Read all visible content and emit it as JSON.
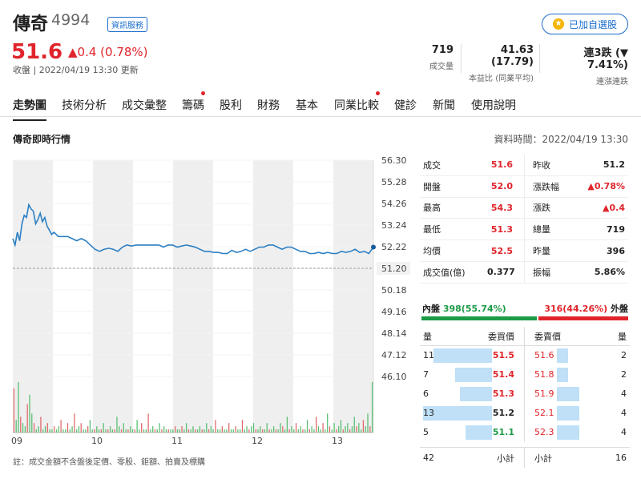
{
  "stock": {
    "name": "傳奇",
    "code": "4994",
    "info_tag": "資訊服務",
    "watch_label": "已加自選股",
    "price": "51.6",
    "change": "▲0.4 (0.78%)",
    "update": "收盤 | 2022/04/19 13:30 更新"
  },
  "header_stats": [
    {
      "value": "719",
      "label": "成交量"
    },
    {
      "value": "41.63 (17.79)",
      "label": "本益比 (同業平均)"
    },
    {
      "value": "連3跌 (▼ 7.41%)",
      "label": "連漲連跌"
    }
  ],
  "tabs": [
    "走勢圖",
    "技術分析",
    "成交彙整",
    "籌碼",
    "股利",
    "財務",
    "基本",
    "同業比較",
    "健診",
    "新聞",
    "使用說明"
  ],
  "section": {
    "title": "傳奇即時行情",
    "data_time": "資料時間：2022/04/19 13:30"
  },
  "chart_data": {
    "type": "line",
    "x_ticks": [
      "09",
      "10",
      "11",
      "12",
      "13"
    ],
    "y_ticks": [
      "56.30",
      "55.28",
      "54.26",
      "53.24",
      "52.22",
      "51.20",
      "50.18",
      "49.16",
      "48.14",
      "47.12",
      "46.10"
    ],
    "ylim": [
      46.1,
      56.3
    ],
    "reference_label": "51.20",
    "reference": 51.2,
    "price_series": [
      [
        0,
        52.6
      ],
      [
        3,
        52.3
      ],
      [
        6,
        52.9
      ],
      [
        9,
        52.5
      ],
      [
        12,
        53.3
      ],
      [
        15,
        53.7
      ],
      [
        18,
        53.6
      ],
      [
        21,
        54.2
      ],
      [
        24,
        54.0
      ],
      [
        27,
        53.9
      ],
      [
        30,
        53.3
      ],
      [
        33,
        53.5
      ],
      [
        36,
        53.8
      ],
      [
        39,
        53.4
      ],
      [
        42,
        53.6
      ],
      [
        45,
        53.2
      ],
      [
        48,
        53.0
      ],
      [
        51,
        52.8
      ],
      [
        54,
        52.9
      ],
      [
        57,
        52.8
      ],
      [
        60,
        52.7
      ],
      [
        66,
        52.7
      ],
      [
        72,
        52.7
      ],
      [
        78,
        52.6
      ],
      [
        84,
        52.5
      ],
      [
        90,
        52.6
      ],
      [
        96,
        52.5
      ],
      [
        102,
        52.3
      ],
      [
        108,
        52.1
      ],
      [
        114,
        52.0
      ],
      [
        120,
        52.1
      ],
      [
        126,
        52.15
      ],
      [
        132,
        52.1
      ],
      [
        138,
        52.0
      ],
      [
        144,
        52.2
      ],
      [
        150,
        52.3
      ],
      [
        156,
        52.25
      ],
      [
        162,
        52.3
      ],
      [
        168,
        52.3
      ],
      [
        180,
        52.3
      ],
      [
        192,
        52.3
      ],
      [
        198,
        52.2
      ],
      [
        204,
        52.3
      ],
      [
        210,
        52.3
      ],
      [
        216,
        52.2
      ],
      [
        222,
        52.25
      ],
      [
        228,
        52.3
      ],
      [
        234,
        52.25
      ],
      [
        240,
        52.2
      ],
      [
        246,
        52.1
      ],
      [
        252,
        52.0
      ],
      [
        258,
        52.0
      ],
      [
        264,
        51.95
      ],
      [
        270,
        51.95
      ],
      [
        276,
        51.9
      ],
      [
        282,
        51.9
      ],
      [
        288,
        52.05
      ],
      [
        294,
        51.95
      ],
      [
        300,
        52.0
      ],
      [
        306,
        52.1
      ],
      [
        312,
        52.0
      ],
      [
        318,
        52.1
      ],
      [
        324,
        52.2
      ],
      [
        330,
        52.2
      ],
      [
        336,
        52.3
      ],
      [
        342,
        52.3
      ],
      [
        348,
        52.2
      ],
      [
        354,
        52.1
      ],
      [
        360,
        52.2
      ],
      [
        366,
        52.2
      ],
      [
        372,
        52.1
      ],
      [
        378,
        52.0
      ],
      [
        384,
        52.0
      ],
      [
        390,
        51.9
      ],
      [
        396,
        51.9
      ],
      [
        402,
        51.95
      ],
      [
        408,
        51.9
      ],
      [
        414,
        51.95
      ],
      [
        420,
        51.9
      ],
      [
        426,
        51.9
      ],
      [
        432,
        52.0
      ],
      [
        438,
        51.95
      ],
      [
        444,
        52.0
      ],
      [
        450,
        52.1
      ],
      [
        456,
        51.95
      ],
      [
        462,
        52.0
      ],
      [
        468,
        51.9
      ],
      [
        474,
        52.2
      ]
    ],
    "volume": [
      14,
      4,
      16,
      5,
      3,
      2,
      9,
      12,
      6,
      3,
      1,
      2,
      5,
      1,
      2,
      3,
      1,
      1,
      2,
      1,
      2,
      4,
      1,
      1,
      3,
      1,
      2,
      6,
      1,
      2,
      3,
      1,
      1,
      2,
      4,
      1,
      1,
      2,
      1,
      1,
      3,
      1,
      1,
      2,
      1,
      1,
      5,
      2,
      1,
      3,
      1,
      1,
      2,
      1,
      1,
      4,
      1,
      3,
      1,
      1,
      6,
      1,
      2,
      1,
      1,
      3,
      1,
      2,
      1,
      1,
      1,
      1,
      2,
      1,
      1,
      2,
      1,
      3,
      1,
      1,
      2,
      1,
      1,
      2,
      1,
      1,
      3,
      1,
      2,
      1,
      4,
      1,
      1,
      2,
      1,
      1,
      3,
      1,
      1,
      2,
      1,
      1,
      4,
      1,
      2,
      1,
      2,
      3,
      1,
      1,
      2,
      1,
      1,
      3,
      1,
      1,
      2,
      1,
      1,
      3,
      2,
      1,
      5,
      1,
      2,
      1,
      3,
      1,
      2,
      1,
      1,
      4,
      1,
      2,
      1,
      5,
      2,
      1,
      3,
      1,
      6,
      2,
      1,
      3,
      1,
      2,
      4,
      1,
      2,
      3,
      1,
      2,
      5,
      2,
      3,
      1,
      4,
      2,
      6,
      2,
      16
    ]
  },
  "quotes": {
    "left": [
      {
        "label": "成交",
        "value": "51.6",
        "color": "red"
      },
      {
        "label": "開盤",
        "value": "52.0",
        "color": "red"
      },
      {
        "label": "最高",
        "value": "54.3",
        "color": "red"
      },
      {
        "label": "最低",
        "value": "51.3",
        "color": "red"
      },
      {
        "label": "均價",
        "value": "52.5",
        "color": "red"
      },
      {
        "label": "成交值(億)",
        "value": "0.377",
        "color": "black"
      }
    ],
    "right": [
      {
        "label": "昨收",
        "value": "51.2",
        "color": "black"
      },
      {
        "label": "漲跌幅",
        "value": "▲0.78%",
        "color": "red"
      },
      {
        "label": "漲跌",
        "value": "▲0.4",
        "color": "red"
      },
      {
        "label": "總量",
        "value": "719",
        "color": "black"
      },
      {
        "label": "昨量",
        "value": "396",
        "color": "black"
      },
      {
        "label": "振幅",
        "value": "5.86%",
        "color": "black"
      }
    ]
  },
  "pressure": {
    "inner_label": "內盤",
    "inner_value": "398(55.74%)",
    "inner_ratio": 0.5574,
    "outer_value": "316(44.26%)",
    "outer_label": "外盤"
  },
  "orderbook": {
    "headers": [
      "量",
      "委買價",
      "委賣價",
      "量"
    ],
    "bids": [
      {
        "qty": "11",
        "price": "51.5",
        "color": "red",
        "ratio": 0.85
      },
      {
        "qty": "7",
        "price": "51.4",
        "color": "red",
        "ratio": 0.54
      },
      {
        "qty": "6",
        "price": "51.3",
        "color": "red",
        "ratio": 0.46
      },
      {
        "qty": "13",
        "price": "51.2",
        "color": "black",
        "ratio": 1.0
      },
      {
        "qty": "5",
        "price": "51.1",
        "color": "green",
        "ratio": 0.38
      }
    ],
    "asks": [
      {
        "price": "51.6",
        "qty": "2",
        "color": "red",
        "ratio": 0.25
      },
      {
        "price": "51.8",
        "qty": "2",
        "color": "red",
        "ratio": 0.25
      },
      {
        "price": "51.9",
        "qty": "4",
        "color": "red",
        "ratio": 0.5
      },
      {
        "price": "52.1",
        "qty": "4",
        "color": "red",
        "ratio": 0.5
      },
      {
        "price": "52.3",
        "qty": "4",
        "color": "red",
        "ratio": 0.5
      }
    ],
    "totals": {
      "bid_qty": "42",
      "bid_label": "小計",
      "ask_label": "小計",
      "ask_qty": "16"
    }
  },
  "footnote": "註：成交金額不含盤後定價、零股、鉅額、拍賣及標購"
}
